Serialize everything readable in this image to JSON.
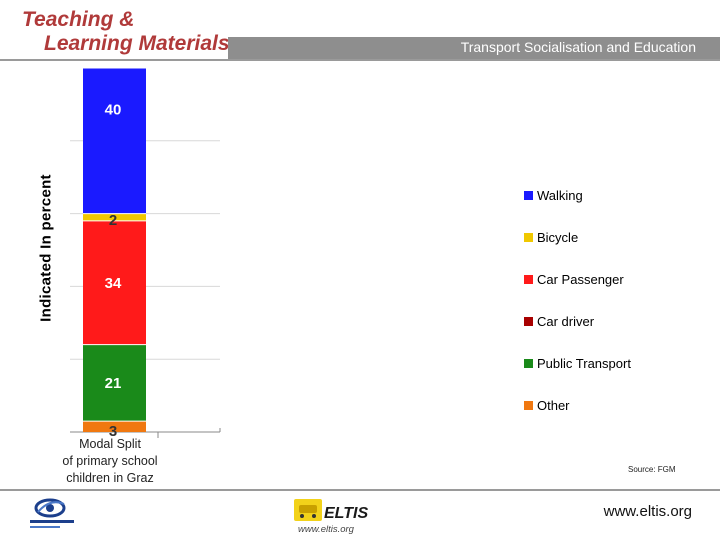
{
  "header": {
    "brand_line1": "Teaching &",
    "brand_line2": "Learning Materials",
    "bar_title": "Transport Socialisation and Education"
  },
  "chart_data": {
    "type": "bar",
    "stacked": true,
    "categories": [
      "Modal Split of primary school children in Graz"
    ],
    "category_label": "Modal Split\nof primary school\nchildren in Graz",
    "series": [
      {
        "name": "Other",
        "values": [
          3
        ],
        "color": "#f07810"
      },
      {
        "name": "Public Transport",
        "values": [
          21
        ],
        "color": "#1a8a1a"
      },
      {
        "name": "Car driver",
        "values": [
          0
        ],
        "color": "#a80000"
      },
      {
        "name": "Car Passenger",
        "values": [
          34
        ],
        "color": "#ff1a1a"
      },
      {
        "name": "Bicycle",
        "values": [
          2
        ],
        "color": "#f0c800"
      },
      {
        "name": "Walking",
        "values": [
          40
        ],
        "color": "#1a1aff"
      }
    ],
    "data_labels": [
      "3",
      "21",
      "",
      "34",
      "2",
      "40"
    ],
    "legend_order": [
      "Walking",
      "Bicycle",
      "Car Passenger",
      "Car driver",
      "Public Transport",
      "Other"
    ],
    "ylabel": "Indicated In percent",
    "ylim": [
      0,
      100
    ],
    "grid": true,
    "legend_position": "right"
  },
  "caption_lines": [
    "Modal Split",
    "of primary school",
    "children in Graz"
  ],
  "source": "Source: FGM",
  "footer": {
    "url": "www.eltis.org",
    "eltis_logo_text": "ELTIS",
    "eltis_logo_url": "www.eltis.org"
  }
}
